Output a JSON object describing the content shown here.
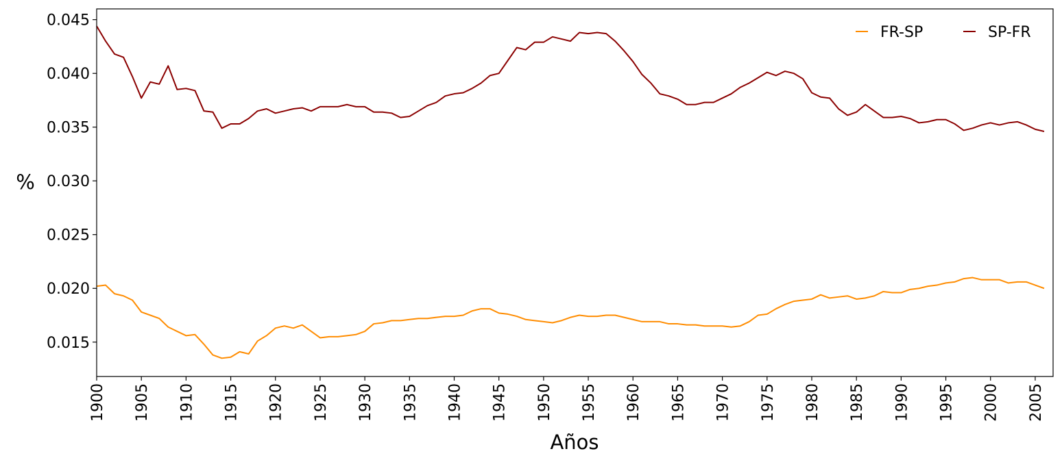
{
  "chart_data": {
    "type": "line",
    "title": "",
    "xlabel": "Años",
    "ylabel": "%",
    "xlim": [
      1900,
      2007
    ],
    "ylim": [
      0.0118,
      0.046
    ],
    "x_ticks": [
      1900,
      1905,
      1910,
      1915,
      1920,
      1925,
      1930,
      1935,
      1940,
      1945,
      1950,
      1955,
      1960,
      1965,
      1970,
      1975,
      1980,
      1985,
      1990,
      1995,
      2000,
      2005
    ],
    "y_ticks": [
      "0.015",
      "0.020",
      "0.025",
      "0.030",
      "0.035",
      "0.040",
      "0.045"
    ],
    "grid": false,
    "legend_position": "top-right",
    "x": [
      1900,
      1901,
      1902,
      1903,
      1904,
      1905,
      1906,
      1907,
      1908,
      1909,
      1910,
      1911,
      1912,
      1913,
      1914,
      1915,
      1916,
      1917,
      1918,
      1919,
      1920,
      1921,
      1922,
      1923,
      1924,
      1925,
      1926,
      1927,
      1928,
      1929,
      1930,
      1931,
      1932,
      1933,
      1934,
      1935,
      1936,
      1937,
      1938,
      1939,
      1940,
      1941,
      1942,
      1943,
      1944,
      1945,
      1946,
      1947,
      1948,
      1949,
      1950,
      1951,
      1952,
      1953,
      1954,
      1955,
      1956,
      1957,
      1958,
      1959,
      1960,
      1961,
      1962,
      1963,
      1964,
      1965,
      1966,
      1967,
      1968,
      1969,
      1970,
      1971,
      1972,
      1973,
      1974,
      1975,
      1976,
      1977,
      1978,
      1979,
      1980,
      1981,
      1982,
      1983,
      1984,
      1985,
      1986,
      1987,
      1988,
      1989,
      1990,
      1991,
      1992,
      1993,
      1994,
      1995,
      1996,
      1997,
      1998,
      1999,
      2000,
      2001,
      2002,
      2003,
      2004,
      2005,
      2006
    ],
    "series": [
      {
        "name": "FR-SP",
        "color": "#ff8c00",
        "values": [
          0.0202,
          0.0203,
          0.0195,
          0.0193,
          0.0189,
          0.0178,
          0.0175,
          0.0172,
          0.0164,
          0.016,
          0.0156,
          0.0157,
          0.0148,
          0.0138,
          0.0135,
          0.0136,
          0.0141,
          0.0139,
          0.0151,
          0.0156,
          0.0163,
          0.0165,
          0.0163,
          0.0166,
          0.016,
          0.0154,
          0.0155,
          0.0155,
          0.0156,
          0.0157,
          0.016,
          0.0167,
          0.0168,
          0.017,
          0.017,
          0.0171,
          0.0172,
          0.0172,
          0.0173,
          0.0174,
          0.0174,
          0.0175,
          0.0179,
          0.0181,
          0.0181,
          0.0177,
          0.0176,
          0.0174,
          0.0171,
          0.017,
          0.0169,
          0.0168,
          0.017,
          0.0173,
          0.0175,
          0.0174,
          0.0174,
          0.0175,
          0.0175,
          0.0173,
          0.0171,
          0.0169,
          0.0169,
          0.0169,
          0.0167,
          0.0167,
          0.0166,
          0.0166,
          0.0165,
          0.0165,
          0.0165,
          0.0164,
          0.0165,
          0.0169,
          0.0175,
          0.0176,
          0.0181,
          0.0185,
          0.0188,
          0.0189,
          0.019,
          0.0194,
          0.0191,
          0.0192,
          0.0193,
          0.019,
          0.0191,
          0.0193,
          0.0197,
          0.0196,
          0.0196,
          0.0199,
          0.02,
          0.0202,
          0.0203,
          0.0205,
          0.0206,
          0.0209,
          0.021,
          0.0208,
          0.0208,
          0.0208,
          0.0205,
          0.0206,
          0.0206,
          0.0203,
          0.02
        ]
      },
      {
        "name": "SP-FR",
        "color": "#8b0000",
        "values": [
          0.0444,
          0.043,
          0.0418,
          0.0415,
          0.0397,
          0.0377,
          0.0392,
          0.039,
          0.0407,
          0.0385,
          0.0386,
          0.0384,
          0.0365,
          0.0364,
          0.0349,
          0.0353,
          0.0353,
          0.0358,
          0.0365,
          0.0367,
          0.0363,
          0.0365,
          0.0367,
          0.0368,
          0.0365,
          0.0369,
          0.0369,
          0.0369,
          0.0371,
          0.0369,
          0.0369,
          0.0364,
          0.0364,
          0.0363,
          0.0359,
          0.036,
          0.0365,
          0.037,
          0.0373,
          0.0379,
          0.0381,
          0.0382,
          0.0386,
          0.0391,
          0.0398,
          0.04,
          0.0412,
          0.0424,
          0.0422,
          0.0429,
          0.0429,
          0.0434,
          0.0432,
          0.043,
          0.0438,
          0.0437,
          0.0438,
          0.0437,
          0.043,
          0.0421,
          0.0411,
          0.0399,
          0.0391,
          0.0381,
          0.0379,
          0.0376,
          0.0371,
          0.0371,
          0.0373,
          0.0373,
          0.0377,
          0.0381,
          0.0387,
          0.0391,
          0.0396,
          0.0401,
          0.0398,
          0.0402,
          0.04,
          0.0395,
          0.0382,
          0.0378,
          0.0377,
          0.0367,
          0.0361,
          0.0364,
          0.0371,
          0.0365,
          0.0359,
          0.0359,
          0.036,
          0.0358,
          0.0354,
          0.0355,
          0.0357,
          0.0357,
          0.0353,
          0.0347,
          0.0349,
          0.0352,
          0.0354,
          0.0352,
          0.0354,
          0.0355,
          0.0352,
          0.0348,
          0.0346
        ]
      }
    ]
  }
}
